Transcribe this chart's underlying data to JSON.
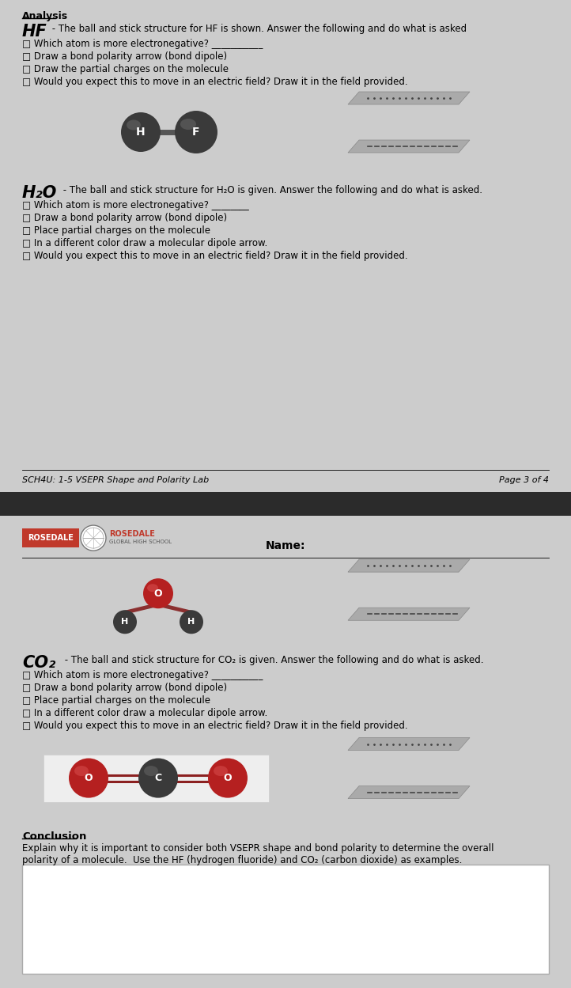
{
  "hf_title": "HF",
  "hf_subtitle": " - The ball and stick structure for HF is shown. Answer the following and do what is asked",
  "hf_q1": "□ Which atom is more electronegative? ___________",
  "hf_q2": "□ Draw a bond polarity arrow (bond dipole)",
  "hf_q3": "□ Draw the partial charges on the molecule",
  "hf_q4": "□ Would you expect this to move in an electric field? Draw it in the field provided.",
  "h2o_title": "H₂O",
  "h2o_subtitle": " - The ball and stick structure for H₂O is given. Answer the following and do what is asked.",
  "h2o_q1": "□ Which atom is more electronegative? ________",
  "h2o_q2": "□ Draw a bond polarity arrow (bond dipole)",
  "h2o_q3": "□ Place partial charges on the molecule",
  "h2o_q4": "□ In a different color draw a molecular dipole arrow.",
  "h2o_q5": "□ Would you expect this to move in an electric field? Draw it in the field provided.",
  "footer_left": "SCH4U: 1-5 VSEPR Shape and Polarity Lab",
  "footer_right": "Page 3 of 4",
  "school_name": "ROSEDALE",
  "name_label": "Name:",
  "co2_title": "CO₂",
  "co2_subtitle": " - The ball and stick structure for CO₂ is given. Answer the following and do what is asked.",
  "co2_q1": "□ Which atom is more electronegative? ___________",
  "co2_q2": "□ Draw a bond polarity arrow (bond dipole)",
  "co2_q3": "□ Place partial charges on the molecule",
  "co2_q4": "□ In a different color draw a molecular dipole arrow.",
  "co2_q5": "□ Would you expect this to move in an electric field? Draw it in the field provided.",
  "conclusion_title": "Conclusion",
  "conclusion_text1": "Explain why it is important to consider both VSEPR shape and bond polarity to determine the overall",
  "conclusion_text2": "polarity of a molecule.  Use the HF (hydrogen fluoride) and CO₂ (carbon dioxide) as examples.",
  "analysis_label": "Analysis",
  "rosedale_red": "#c0392b",
  "atom_dark": "#3a3a3a",
  "atom_red": "#b52020",
  "stick_dark": "#555555",
  "plate_color": "#999999",
  "plate_dot_color": "#444444"
}
